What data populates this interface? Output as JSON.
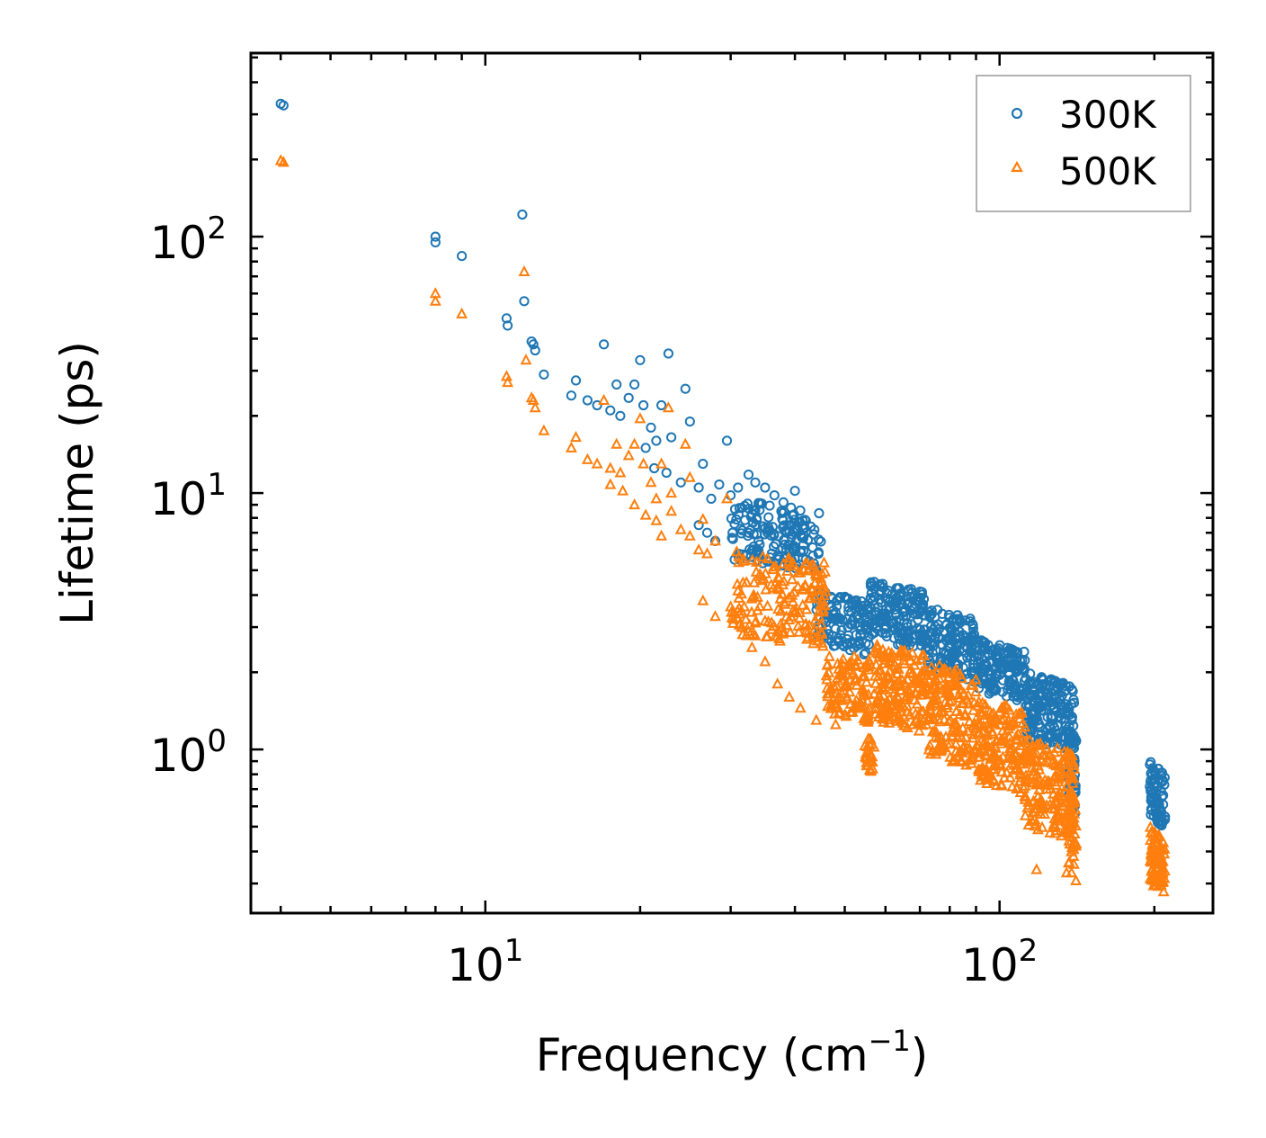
{
  "chart_data": {
    "type": "scatter",
    "title": "",
    "xlabel_base": "Frequency (cm",
    "xlabel_exp": "−1",
    "xlabel_close": ")",
    "ylabel": "Lifetime (ps)",
    "xscale": "log",
    "yscale": "log",
    "xlim": [
      3.5,
      260
    ],
    "ylim": [
      0.23,
      520
    ],
    "x_ticks": [
      {
        "value": 10,
        "base": "10",
        "exp": "1"
      },
      {
        "value": 100,
        "base": "10",
        "exp": "2"
      }
    ],
    "y_ticks": [
      {
        "value": 1,
        "base": "10",
        "exp": "0"
      },
      {
        "value": 10,
        "base": "10",
        "exp": "1"
      },
      {
        "value": 100,
        "base": "10",
        "exp": "2"
      }
    ],
    "legend_position": "top-right",
    "series": [
      {
        "name": "300K",
        "marker": "circle",
        "color": "#1f77b4",
        "points": [
          [
            4.0,
            330
          ],
          [
            4.05,
            325
          ],
          [
            8.0,
            100
          ],
          [
            8.0,
            95
          ],
          [
            9.0,
            84
          ],
          [
            11.0,
            48
          ],
          [
            11.05,
            45
          ],
          [
            11.8,
            122
          ],
          [
            11.9,
            56
          ],
          [
            12.3,
            39
          ],
          [
            12.4,
            38
          ],
          [
            12.5,
            36
          ],
          [
            13.0,
            29
          ],
          [
            14.7,
            24
          ],
          [
            15.0,
            27.5
          ],
          [
            15.8,
            23
          ],
          [
            16.5,
            22
          ],
          [
            17.0,
            38
          ],
          [
            17.5,
            21
          ],
          [
            18.0,
            26.5
          ],
          [
            18.3,
            20
          ],
          [
            19.0,
            23.5
          ],
          [
            19.5,
            26.5
          ],
          [
            20.0,
            33
          ],
          [
            20.3,
            22
          ],
          [
            21.0,
            18
          ],
          [
            21.5,
            16
          ],
          [
            22.0,
            22
          ],
          [
            22.7,
            35
          ],
          [
            23.0,
            16.5
          ],
          [
            24.5,
            25.5
          ],
          [
            25.0,
            19
          ],
          [
            26.5,
            13
          ],
          [
            29.5,
            16
          ],
          [
            20.5,
            15
          ],
          [
            21.3,
            12.5
          ],
          [
            22.5,
            12
          ],
          [
            24.0,
            11
          ],
          [
            26.0,
            10.5
          ],
          [
            27.5,
            9.5
          ],
          [
            28.5,
            10.8
          ],
          [
            30.0,
            9.8
          ],
          [
            31.0,
            10.5
          ],
          [
            32.5,
            11.8
          ],
          [
            33.5,
            11
          ],
          [
            35.0,
            10.5
          ],
          [
            36.5,
            9.8
          ],
          [
            38.0,
            9.2
          ],
          [
            40.0,
            10.2
          ],
          [
            42.0,
            7.8
          ],
          [
            43.5,
            6.9
          ],
          [
            26.0,
            7.5
          ],
          [
            27.0,
            7.0
          ],
          [
            28.0,
            6.5
          ],
          [
            34.0,
            6.5
          ],
          [
            38.5,
            7.0
          ],
          [
            44.0,
            5.0
          ]
        ],
        "bands": [
          {
            "x_min": 30,
            "x_max": 45,
            "y_lo": 5.5,
            "y_hi": 9.5,
            "count": 160
          },
          {
            "x_min": 44,
            "x_max": 56,
            "y_lo": 2.6,
            "y_hi": 4.2,
            "count": 120
          },
          {
            "x_min": 56,
            "x_max": 72,
            "y_lo": 2.7,
            "y_hi": 4.6,
            "count": 170
          },
          {
            "x_min": 72,
            "x_max": 90,
            "y_lo": 2.0,
            "y_hi": 3.6,
            "count": 160
          },
          {
            "x_min": 90,
            "x_max": 112,
            "y_lo": 1.7,
            "y_hi": 2.7,
            "count": 160
          },
          {
            "x_min": 112,
            "x_max": 140,
            "y_lo": 1.1,
            "y_hi": 2.0,
            "count": 190
          },
          {
            "x_min": 136,
            "x_max": 141,
            "y_lo": 0.6,
            "y_hi": 1.3,
            "count": 50
          },
          {
            "x_min": 196,
            "x_max": 210,
            "y_lo": 0.55,
            "y_hi": 0.9,
            "count": 80
          }
        ]
      },
      {
        "name": "500K",
        "marker": "triangle",
        "color": "#ff7f0e",
        "points": [
          [
            4.0,
            198
          ],
          [
            4.05,
            195
          ],
          [
            8.0,
            60
          ],
          [
            8.0,
            56
          ],
          [
            9.0,
            50
          ],
          [
            11.0,
            28.5
          ],
          [
            11.05,
            27
          ],
          [
            11.9,
            73
          ],
          [
            12.0,
            33
          ],
          [
            12.3,
            23.5
          ],
          [
            12.4,
            23
          ],
          [
            12.5,
            21.5
          ],
          [
            13.0,
            17.5
          ],
          [
            14.7,
            15
          ],
          [
            15.0,
            16.5
          ],
          [
            15.8,
            13.5
          ],
          [
            16.5,
            13
          ],
          [
            17.0,
            23
          ],
          [
            17.5,
            12.5
          ],
          [
            18.0,
            15.5
          ],
          [
            18.3,
            12
          ],
          [
            19.0,
            14
          ],
          [
            19.5,
            15.5
          ],
          [
            20.0,
            19.5
          ],
          [
            20.3,
            13
          ],
          [
            21.0,
            11
          ],
          [
            21.5,
            9.5
          ],
          [
            22.0,
            13
          ],
          [
            22.7,
            21.5
          ],
          [
            23.0,
            10
          ],
          [
            24.5,
            15.5
          ],
          [
            25.0,
            11.5
          ],
          [
            26.5,
            7.9
          ],
          [
            29.5,
            9.5
          ],
          [
            17.5,
            10.8
          ],
          [
            18.5,
            10.2
          ],
          [
            19.5,
            9.0
          ],
          [
            20.5,
            8.2
          ],
          [
            21.5,
            7.8
          ],
          [
            22.0,
            6.8
          ],
          [
            23.0,
            8.5
          ],
          [
            24.0,
            7.2
          ],
          [
            25.0,
            6.8
          ],
          [
            26.0,
            6.0
          ],
          [
            27.0,
            5.8
          ],
          [
            28.0,
            6.5
          ],
          [
            26.5,
            3.8
          ],
          [
            28.0,
            3.3
          ],
          [
            30.0,
            3.6
          ],
          [
            31.5,
            3.0
          ],
          [
            33.0,
            2.5
          ],
          [
            35.0,
            2.2
          ],
          [
            37.0,
            1.8
          ],
          [
            39.0,
            1.6
          ],
          [
            41.0,
            1.45
          ],
          [
            44.0,
            1.3
          ],
          [
            48.0,
            1.25
          ],
          [
            118.0,
            0.34
          ],
          [
            135.0,
            0.33
          ]
        ],
        "bands": [
          {
            "x_min": 30,
            "x_max": 46,
            "y_lo": 2.8,
            "y_hi": 6.0,
            "count": 180
          },
          {
            "x_min": 46,
            "x_max": 56,
            "y_lo": 1.4,
            "y_hi": 2.5,
            "count": 110
          },
          {
            "x_min": 54.5,
            "x_max": 57,
            "y_lo": 0.88,
            "y_hi": 1.2,
            "count": 25
          },
          {
            "x_min": 57,
            "x_max": 72,
            "y_lo": 1.3,
            "y_hi": 2.6,
            "count": 170
          },
          {
            "x_min": 72,
            "x_max": 90,
            "y_lo": 0.95,
            "y_hi": 2.2,
            "count": 170
          },
          {
            "x_min": 90,
            "x_max": 112,
            "y_lo": 0.75,
            "y_hi": 1.6,
            "count": 170
          },
          {
            "x_min": 112,
            "x_max": 140,
            "y_lo": 0.5,
            "y_hi": 1.1,
            "count": 200
          },
          {
            "x_min": 136,
            "x_max": 141,
            "y_lo": 0.34,
            "y_hi": 0.7,
            "count": 40
          },
          {
            "x_min": 196,
            "x_max": 210,
            "y_lo": 0.3,
            "y_hi": 0.5,
            "count": 80
          }
        ]
      }
    ]
  }
}
